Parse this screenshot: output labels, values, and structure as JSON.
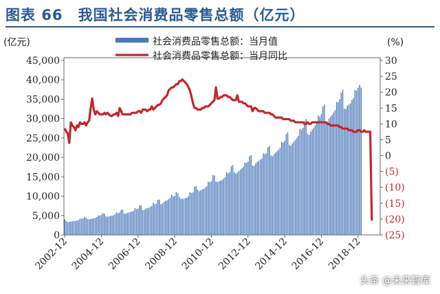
{
  "figure": {
    "title": "图表 66　我国社会消费品零售总额（亿元）",
    "watermark": "头条 @未来智库"
  },
  "colors": {
    "title": "#2b5a8f",
    "bars": "#4a78b8",
    "line": "#c0272d",
    "neg_labels": "#c0272d"
  },
  "chart_data": {
    "type": "bar+line",
    "title": "",
    "y_left_unit": "(亿元)",
    "y_right_unit": "(%)",
    "ylim_left": [
      0,
      45000
    ],
    "ylim_right": [
      -25,
      30
    ],
    "y_left_ticks": [
      "0",
      "5,000",
      "10,000",
      "15,000",
      "20,000",
      "25,000",
      "30,000",
      "35,000",
      "40,000",
      "45,000"
    ],
    "y_right_ticks": [
      "(25)",
      "(20)",
      "(15)",
      "(10)",
      "(5)",
      "0",
      "5",
      "10",
      "15",
      "20",
      "25",
      "30"
    ],
    "x_ticks": [
      "2002-12",
      "2004-12",
      "2006-12",
      "2008-12",
      "2010-12",
      "2012-12",
      "2014-12",
      "2016-12",
      "2018-12"
    ],
    "x_range": [
      "2002-12",
      "2020-02"
    ],
    "legend": [
      {
        "name": "社会消费品零售总额：当月值",
        "kind": "bar"
      },
      {
        "name": "社会消费品零售总额：当月同比",
        "kind": "line"
      }
    ],
    "legend_position": "top-center",
    "series": [
      {
        "name": "社会消费品零售总额：当月值",
        "axis": "left",
        "note": "monthly values read from gridlines, 2002-12 to 2020-02",
        "values": [
          4100,
          3600,
          3300,
          3400,
          3400,
          3500,
          3600,
          3600,
          3700,
          3800,
          4200,
          4200,
          4300,
          4700,
          4400,
          4100,
          4000,
          4100,
          4200,
          4300,
          4400,
          4600,
          5000,
          5000,
          5200,
          5600,
          5500,
          4800,
          4700,
          4800,
          4900,
          5000,
          5100,
          5400,
          5800,
          5600,
          5800,
          6500,
          6500,
          5500,
          5500,
          5700,
          5800,
          5900,
          6000,
          6200,
          6900,
          6700,
          6800,
          7600,
          7700,
          6400,
          6400,
          6700,
          6900,
          7000,
          7200,
          7500,
          8300,
          7900,
          8100,
          9000,
          9100,
          7900,
          8100,
          8500,
          8800,
          8900,
          9200,
          9600,
          10300,
          9900,
          10100,
          11000,
          10700,
          9800,
          9300,
          9300,
          9300,
          9500,
          9600,
          10000,
          11000,
          10800,
          11000,
          12500,
          12600,
          11700,
          11300,
          11500,
          11700,
          11900,
          12200,
          12600,
          13700,
          13600,
          13900,
          15400,
          15300,
          13800,
          13600,
          13800,
          14000,
          14200,
          14500,
          14900,
          16200,
          15900,
          16200,
          17700,
          18000,
          16200,
          15800,
          16100,
          16500,
          16800,
          17200,
          17600,
          18700,
          18600,
          18900,
          20300,
          20600,
          17900,
          17800,
          18400,
          18800,
          19100,
          19400,
          19700,
          21000,
          20800,
          21100,
          22600,
          23000,
          20500,
          20300,
          20800,
          21200,
          21600,
          22000,
          22500,
          24000,
          23800,
          24300,
          26000,
          26400,
          23200,
          23000,
          23600,
          24100,
          24500,
          25000,
          25600,
          27300,
          27100,
          27600,
          29400,
          29900,
          26100,
          25800,
          26600,
          27200,
          27700,
          28300,
          28800,
          30800,
          30500,
          31200,
          33100,
          33600,
          29300,
          29200,
          30000,
          30500,
          31000,
          31600,
          32200,
          34300,
          34200,
          35000,
          36700,
          37400,
          32500,
          32500,
          33300,
          33600,
          33900,
          34800,
          35300,
          37400,
          37200,
          38000,
          38700,
          38000
        ]
      },
      {
        "name": "社会消费品零售总额：当月同比",
        "axis": "right",
        "values": [
          8.6,
          7.5,
          7.0,
          4.0,
          10.5,
          9.5,
          9.0,
          8.0,
          9.5,
          9.0,
          10.5,
          10.0,
          10.0,
          10.5,
          9.5,
          10.5,
          11.0,
          15.0,
          18.0,
          14.5,
          13.0,
          14.0,
          13.5,
          13.0,
          13.0,
          13.0,
          13.5,
          13.0,
          13.5,
          13.0,
          12.5,
          12.5,
          13.0,
          13.0,
          13.5,
          12.5,
          15.0,
          14.0,
          13.0,
          13.0,
          13.0,
          13.0,
          13.0,
          13.0,
          13.5,
          13.5,
          13.5,
          13.5,
          14.0,
          14.0,
          13.5,
          14.5,
          14.5,
          14.5,
          14.0,
          14.5,
          14.5,
          15.5,
          14.5,
          15.0,
          15.5,
          16.0,
          16.0,
          16.5,
          17.5,
          18.0,
          18.5,
          19.0,
          20.5,
          21.0,
          21.5,
          21.5,
          22.0,
          22.5,
          22.5,
          23.5,
          23.5,
          24.0,
          23.5,
          23.0,
          22.5,
          21.5,
          20.5,
          18.5,
          16.5,
          15.0,
          15.0,
          14.5,
          14.5,
          14.5,
          15.0,
          15.0,
          15.5,
          15.5,
          15.5,
          16.0,
          16.5,
          17.0,
          17.5,
          21.5,
          18.0,
          18.0,
          18.5,
          18.5,
          19.0,
          19.0,
          19.0,
          18.5,
          18.5,
          18.0,
          17.5,
          17.5,
          17.5,
          19.0,
          17.0,
          17.0,
          17.0,
          16.5,
          16.5,
          16.0,
          15.5,
          15.5,
          15.5,
          14.0,
          15.0,
          15.0,
          14.5,
          14.0,
          14.0,
          14.0,
          14.0,
          13.5,
          13.5,
          13.5,
          13.5,
          13.0,
          13.0,
          12.5,
          12.0,
          12.0,
          12.0,
          12.0,
          12.0,
          11.5,
          11.5,
          11.5,
          11.5,
          11.5,
          11.0,
          11.0,
          11.0,
          10.5,
          10.5,
          10.5,
          10.5,
          10.5,
          10.5,
          10.0,
          10.0,
          10.5,
          10.0,
          10.0,
          10.5,
          10.5,
          10.5,
          10.5,
          10.5,
          10.5,
          10.5,
          10.5,
          10.5,
          10.5,
          10.0,
          10.0,
          9.5,
          9.5,
          9.5,
          9.5,
          9.5,
          9.5,
          9.0,
          9.0,
          8.5,
          8.5,
          8.5,
          8.5,
          8.0,
          8.0,
          8.0,
          7.5,
          7.5,
          7.5,
          8.0,
          8.0,
          7.5,
          7.5,
          8.0,
          7.5,
          7.5,
          7.5,
          7.5,
          -20.5
        ]
      }
    ]
  }
}
